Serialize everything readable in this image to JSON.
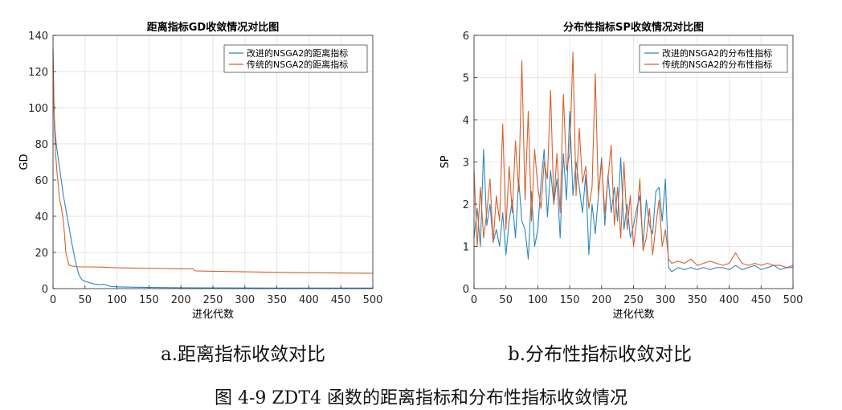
{
  "figure_caption": "图  4-9 ZDT4 函数的距离指标和分布性指标收敛情况",
  "colors": {
    "improved": "#2E86C1",
    "traditional": "#D9602B",
    "axis": "#262626",
    "grid": "#e6e6e6"
  },
  "chart_data": [
    {
      "type": "line",
      "title": "距离指标GD收敛情况对比图",
      "subcaption": "a.距离指标收敛对比",
      "xlabel": "进化代数",
      "ylabel": "GD",
      "xlim": [
        0,
        500
      ],
      "ylim": [
        0,
        140
      ],
      "xticks": [
        0,
        50,
        100,
        150,
        200,
        250,
        300,
        350,
        400,
        450,
        500
      ],
      "yticks": [
        0,
        20,
        40,
        60,
        80,
        100,
        120,
        140
      ],
      "grid": true,
      "legend_position": "top-right",
      "series": [
        {
          "name": "改进的NSGA2的距离指标",
          "color": "#2E86C1",
          "x": [
            0,
            1,
            2,
            3,
            5,
            8,
            12,
            16,
            20,
            25,
            30,
            35,
            40,
            45,
            50,
            55,
            60,
            65,
            70,
            75,
            80,
            85,
            90,
            100,
            120,
            150,
            200,
            250,
            300,
            350,
            400,
            450,
            500
          ],
          "y": [
            133,
            110,
            95,
            88,
            80,
            72,
            62,
            52,
            44,
            34,
            24,
            15,
            8,
            5,
            4,
            3.5,
            3,
            2.5,
            2.3,
            2.2,
            2.4,
            1.8,
            1.2,
            1.0,
            0.8,
            0.6,
            0.5,
            0.4,
            0.35,
            0.3,
            0.3,
            0.3,
            0.3
          ]
        },
        {
          "name": "传统的NSGA2的距离指标",
          "color": "#D9602B",
          "x": [
            0,
            1,
            2,
            4,
            6,
            8,
            10,
            13,
            16,
            18,
            20,
            25,
            30,
            40,
            50,
            60,
            80,
            100,
            150,
            200,
            219,
            222,
            250,
            300,
            350,
            400,
            450,
            500
          ],
          "y": [
            130,
            110,
            90,
            75,
            65,
            58,
            50,
            45,
            38,
            30,
            20,
            13,
            12.5,
            12,
            12,
            12,
            11.8,
            11.5,
            11.2,
            11,
            11,
            9.8,
            9.6,
            9.3,
            9,
            8.8,
            8.6,
            8.5
          ]
        }
      ]
    },
    {
      "type": "line",
      "title": "分布性指标SP收敛情况对比图",
      "subcaption": "b.分布性指标收敛对比",
      "xlabel": "进化代数",
      "ylabel": "SP",
      "xlim": [
        0,
        500
      ],
      "ylim": [
        0,
        6
      ],
      "xticks": [
        0,
        50,
        100,
        150,
        200,
        250,
        300,
        350,
        400,
        450,
        500
      ],
      "yticks": [
        0,
        1,
        2,
        3,
        4,
        5,
        6
      ],
      "grid": true,
      "legend_position": "top-right",
      "series": [
        {
          "name": "改进的NSGA2的分布性指标",
          "color": "#2E86C1",
          "x": [
            0,
            5,
            10,
            15,
            20,
            25,
            30,
            35,
            40,
            45,
            50,
            55,
            60,
            65,
            70,
            75,
            80,
            85,
            90,
            95,
            100,
            105,
            110,
            115,
            120,
            125,
            130,
            135,
            140,
            145,
            150,
            155,
            160,
            165,
            170,
            175,
            180,
            185,
            190,
            195,
            200,
            205,
            210,
            215,
            220,
            225,
            230,
            235,
            240,
            245,
            250,
            255,
            260,
            265,
            270,
            275,
            280,
            285,
            290,
            295,
            300,
            305,
            310,
            320,
            330,
            340,
            350,
            360,
            370,
            380,
            390,
            400,
            410,
            420,
            430,
            440,
            450,
            460,
            470,
            480,
            490,
            500
          ],
          "y": [
            1.2,
            1.9,
            1.0,
            3.3,
            1.5,
            2.0,
            1.1,
            1.4,
            1.0,
            1.8,
            0.8,
            1.6,
            2.1,
            1.2,
            2.6,
            1.6,
            1.4,
            0.7,
            2.3,
            1.0,
            1.4,
            2.5,
            3.3,
            1.7,
            2.8,
            2.0,
            2.6,
            1.2,
            3.2,
            2.1,
            4.2,
            2.2,
            3.0,
            2.4,
            1.8,
            2.7,
            0.8,
            2.0,
            1.3,
            2.2,
            3.1,
            1.5,
            2.7,
            1.8,
            2.4,
            1.6,
            3.1,
            1.4,
            2.0,
            1.2,
            1.5,
            1.9,
            2.2,
            1.0,
            2.1,
            1.5,
            1.3,
            2.3,
            2.4,
            1.6,
            2.6,
            0.5,
            0.4,
            0.5,
            0.45,
            0.5,
            0.45,
            0.5,
            0.45,
            0.5,
            0.5,
            0.45,
            0.55,
            0.45,
            0.5,
            0.55,
            0.45,
            0.5,
            0.55,
            0.45,
            0.5,
            0.5
          ]
        },
        {
          "name": "传统的NSGA2的分布性指标",
          "color": "#D9602B",
          "x": [
            0,
            5,
            10,
            15,
            20,
            25,
            30,
            35,
            40,
            45,
            50,
            55,
            60,
            65,
            70,
            75,
            80,
            85,
            90,
            95,
            100,
            105,
            110,
            115,
            120,
            125,
            130,
            135,
            140,
            145,
            150,
            155,
            160,
            165,
            170,
            175,
            180,
            185,
            190,
            195,
            200,
            205,
            210,
            215,
            220,
            225,
            230,
            235,
            240,
            245,
            250,
            255,
            260,
            265,
            270,
            275,
            280,
            285,
            290,
            295,
            300,
            305,
            310,
            320,
            330,
            340,
            350,
            360,
            370,
            380,
            390,
            400,
            410,
            420,
            430,
            440,
            450,
            460,
            470,
            480,
            490,
            500
          ],
          "y": [
            2.8,
            1.0,
            2.4,
            1.2,
            1.8,
            2.6,
            1.1,
            2.2,
            1.6,
            3.9,
            1.4,
            2.9,
            1.8,
            3.5,
            2.3,
            5.4,
            2.1,
            4.2,
            1.6,
            3.3,
            2.4,
            1.9,
            3.0,
            2.6,
            4.7,
            2.0,
            3.2,
            1.8,
            4.6,
            2.8,
            3.2,
            5.6,
            2.2,
            3.8,
            2.5,
            2.9,
            1.9,
            2.4,
            5.1,
            2.2,
            3.0,
            1.8,
            2.6,
            3.4,
            1.5,
            2.4,
            1.2,
            3.0,
            1.4,
            2.2,
            1.0,
            1.6,
            2.6,
            0.9,
            1.2,
            1.9,
            0.8,
            1.5,
            2.1,
            1.0,
            1.4,
            0.7,
            0.6,
            0.65,
            0.6,
            0.7,
            0.55,
            0.6,
            0.65,
            0.6,
            0.55,
            0.6,
            0.85,
            0.6,
            0.55,
            0.6,
            0.55,
            0.6,
            0.55,
            0.55,
            0.5,
            0.55
          ]
        }
      ]
    }
  ]
}
